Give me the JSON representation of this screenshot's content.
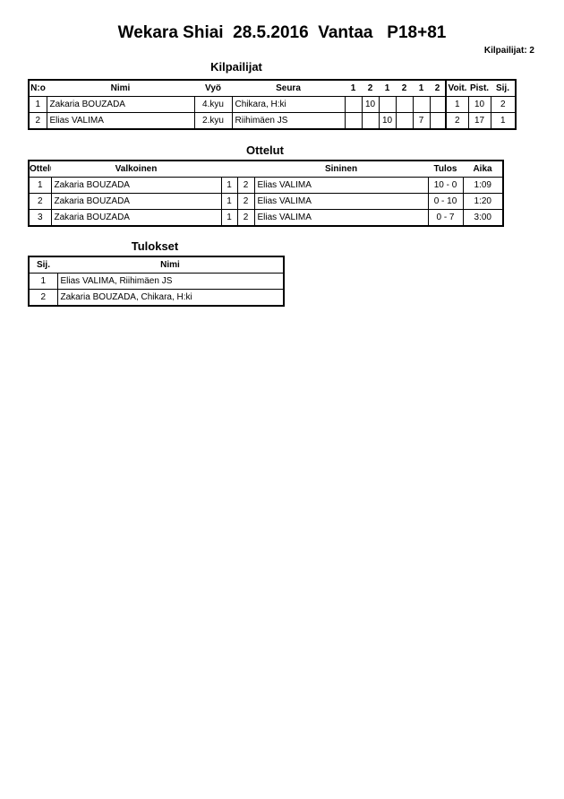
{
  "header": {
    "title": "Wekara Shiai  28.5.2016  Vantaa   P18+81",
    "competitor_count": "Kilpailijat: 2"
  },
  "competitors": {
    "title": "Kilpailijat",
    "columns": [
      "N:o",
      "Nimi",
      "Vyö",
      "Seura",
      "1",
      "2",
      "1",
      "2",
      "1",
      "2",
      "Voit.",
      "Pist.",
      "Sij."
    ],
    "rows": [
      [
        "1",
        "Zakaria BOUZADA",
        "4.kyu",
        "Chikara, H:ki",
        "",
        "10",
        "",
        "",
        "",
        "",
        "1",
        "10",
        "2"
      ],
      [
        "2",
        "Elias VALIMA",
        "2.kyu",
        "Riihimäen JS",
        "",
        "",
        "10",
        "",
        "7",
        "",
        "2",
        "17",
        "1"
      ]
    ]
  },
  "matches": {
    "title": "Ottelut",
    "columns": [
      "Ottelu",
      "Valkoinen",
      "",
      "",
      "Sininen",
      "Tulos",
      "Aika"
    ],
    "rows": [
      [
        "1",
        "Zakaria BOUZADA",
        "1",
        "2",
        "Elias VALIMA",
        "10 - 0",
        "1:09"
      ],
      [
        "2",
        "Zakaria BOUZADA",
        "1",
        "2",
        "Elias VALIMA",
        "0 - 10",
        "1:20"
      ],
      [
        "3",
        "Zakaria BOUZADA",
        "1",
        "2",
        "Elias VALIMA",
        "0 - 7",
        "3:00"
      ]
    ]
  },
  "results": {
    "title": "Tulokset",
    "columns": [
      "Sij.",
      "Nimi"
    ],
    "rows": [
      [
        "1",
        "Elias VALIMA, Riihimäen JS"
      ],
      [
        "2",
        "Zakaria BOUZADA, Chikara, H:ki"
      ]
    ]
  }
}
